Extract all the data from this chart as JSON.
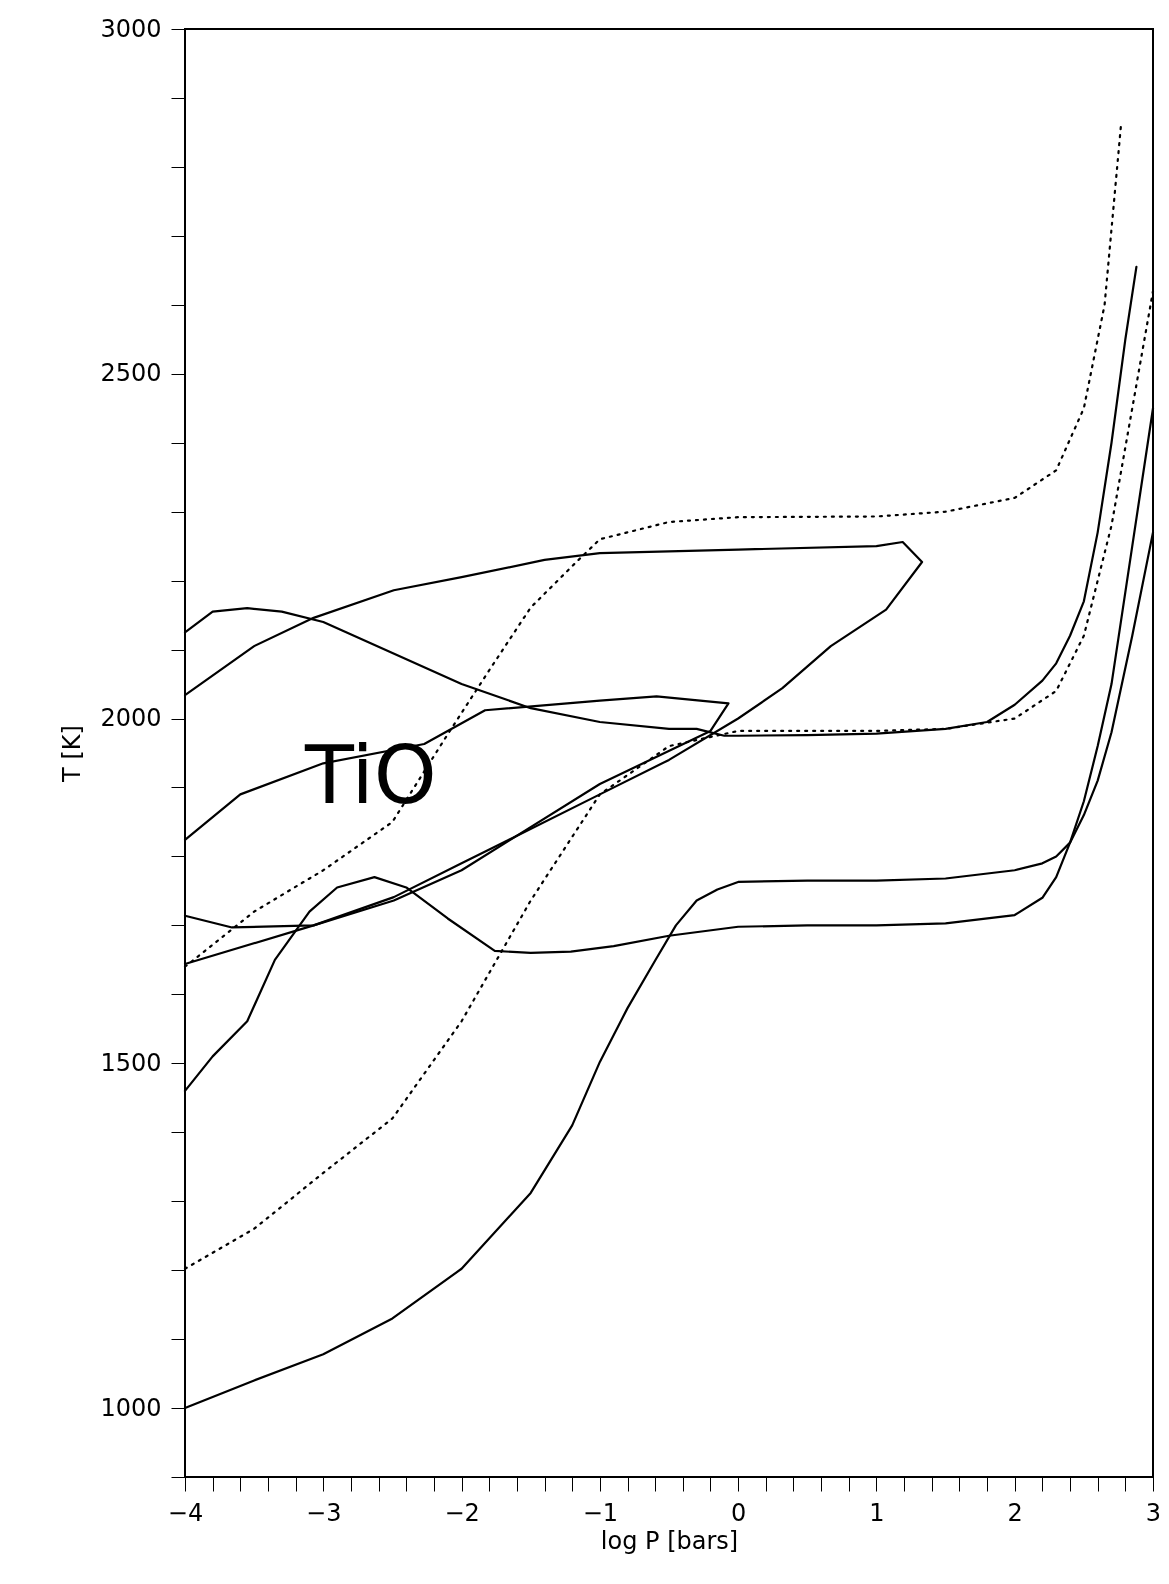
{
  "chart_data": {
    "type": "line",
    "xlabel": "log P [bars]",
    "ylabel": "T [K]",
    "xlim": [
      -4,
      3
    ],
    "ylim": [
      900,
      3000
    ],
    "grid": false,
    "marker": "none",
    "xticks": [
      -4,
      {
        "value": -3.8,
        "label": null
      },
      {
        "value": -3.6,
        "label": null
      },
      {
        "value": -3.4,
        "label": null
      },
      {
        "value": -3.2,
        "label": null
      },
      -3,
      {
        "value": -2.8,
        "label": null
      },
      {
        "value": -2.6,
        "label": null
      },
      {
        "value": -2.4,
        "label": null
      },
      {
        "value": -2.2,
        "label": null
      },
      -2,
      {
        "value": -1.8,
        "label": null
      },
      {
        "value": -1.6,
        "label": null
      },
      {
        "value": -1.4,
        "label": null
      },
      {
        "value": -1.2,
        "label": null
      },
      -1,
      {
        "value": -0.8,
        "label": null
      },
      {
        "value": -0.6,
        "label": null
      },
      {
        "value": -0.4,
        "label": null
      },
      {
        "value": -0.2,
        "label": null
      },
      0,
      {
        "value": 0.2,
        "label": null
      },
      {
        "value": 0.4,
        "label": null
      },
      {
        "value": 0.6,
        "label": null
      },
      {
        "value": 0.8,
        "label": null
      },
      1,
      {
        "value": 1.2,
        "label": null
      },
      {
        "value": 1.4,
        "label": null
      },
      {
        "value": 1.6,
        "label": null
      },
      {
        "value": 1.8,
        "label": null
      },
      2,
      {
        "value": 2.2,
        "label": null
      },
      {
        "value": 2.4,
        "label": null
      },
      {
        "value": 2.6,
        "label": null
      },
      {
        "value": 2.8,
        "label": null
      },
      3
    ],
    "yticks": [
      {
        "value": 900,
        "label": null
      },
      1000,
      {
        "value": 1100,
        "label": null
      },
      {
        "value": 1200,
        "label": null
      },
      {
        "value": 1300,
        "label": null
      },
      {
        "value": 1400,
        "label": null
      },
      1500,
      {
        "value": 1600,
        "label": null
      },
      {
        "value": 1700,
        "label": null
      },
      {
        "value": 1800,
        "label": null
      },
      {
        "value": 1900,
        "label": null
      },
      2000,
      {
        "value": 2100,
        "label": null
      },
      {
        "value": 2200,
        "label": null
      },
      {
        "value": 2300,
        "label": null
      },
      {
        "value": 2400,
        "label": null
      },
      2500,
      {
        "value": 2600,
        "label": null
      },
      {
        "value": 2700,
        "label": null
      },
      {
        "value": 2800,
        "label": null
      },
      {
        "value": 2900,
        "label": null
      },
      3000
    ],
    "annotations": [
      "TiO"
    ],
    "series": [
      {
        "color": "#000000",
        "line_style": "solid",
        "x": [
          -4,
          -3.8,
          -3.55,
          -3.3,
          -3,
          -2.5,
          -2,
          -1.5,
          -1,
          -0.5,
          -0.3,
          -0.2,
          -0.1,
          0,
          0.5,
          1,
          1.5,
          1.8,
          2,
          2.2,
          2.3,
          2.4,
          2.5,
          2.6,
          2.7,
          2.8,
          2.88
        ],
        "values": [
          2125,
          2155,
          2160,
          2155,
          2140,
          2095,
          2050,
          2015,
          1995,
          1985,
          1985,
          1980,
          1975,
          1975,
          1976,
          1978,
          1985,
          1995,
          2020,
          2055,
          2080,
          2120,
          2170,
          2270,
          2400,
          2550,
          2655
        ]
      },
      {
        "color": "#000000",
        "line_style": "solid",
        "x": [
          -4,
          -3.8,
          -3.55,
          -3.35,
          -3.1,
          -2.9,
          -2.63,
          -2.4,
          -2.1,
          -1.76,
          -1.5,
          -1.21,
          -0.9,
          -0.5,
          0,
          0.5,
          1,
          1.5,
          2,
          2.2,
          2.3,
          2.4,
          2.5,
          2.6,
          2.7,
          2.85,
          3
        ],
        "values": [
          1460,
          1510,
          1561,
          1650,
          1720,
          1755,
          1770,
          1755,
          1710,
          1663,
          1660,
          1662,
          1670,
          1685,
          1698,
          1700,
          1700,
          1703,
          1715,
          1740,
          1770,
          1820,
          1880,
          1960,
          2050,
          2250,
          2450
        ]
      },
      {
        "color": "#000000",
        "line_style": "solid",
        "x": [
          -4,
          -3.5,
          -3,
          -2.5,
          -2,
          -1.5,
          -1.2,
          -1,
          -0.8,
          -0.6,
          -0.45,
          -0.3,
          -0.15,
          0,
          0.5,
          1,
          1.5,
          2,
          2.2,
          2.3,
          2.4,
          2.5,
          2.6,
          2.7,
          2.85,
          3
        ],
        "values": [
          1000,
          1040,
          1078,
          1130,
          1202,
          1312,
          1410,
          1502,
          1580,
          1649,
          1700,
          1736,
          1752,
          1763,
          1765,
          1765,
          1768,
          1780,
          1790,
          1800,
          1820,
          1860,
          1910,
          1980,
          2120,
          2270
        ]
      },
      {
        "color": "#000000",
        "line_style": "solid",
        "x": [
          -4,
          -3.5,
          -3.07,
          -2.49,
          -2,
          -1.4,
          -1,
          0,
          1,
          1.19,
          1.33,
          1.07,
          0.67,
          0.32,
          0,
          -0.5,
          -1,
          -2,
          -2.49,
          -3.07,
          -3.66,
          -4
        ],
        "values": [
          2034,
          2105,
          2146,
          2186,
          2205,
          2230,
          2240,
          2245,
          2250,
          2256,
          2227,
          2158,
          2105,
          2044,
          2000,
          1940,
          1890,
          1790,
          1741,
          1700,
          1697,
          1714
        ]
      },
      {
        "color": "#000000",
        "line_style": "solid",
        "x": [
          -4,
          -3.6,
          -3,
          -2.27,
          -1.83,
          -1,
          -0.59,
          -0.07,
          -0.2,
          -1,
          -2,
          -2.49,
          -3.07,
          -4
        ],
        "values": [
          1824,
          1890,
          1935,
          1963,
          2012,
          2026,
          2032,
          2022,
          1982,
          1905,
          1780,
          1736,
          1700,
          1644
        ]
      },
      {
        "color": "#000000",
        "line_style": "dotted",
        "x": [
          -4,
          -3.5,
          -3,
          -2.5,
          -2.12,
          -1.8,
          -1.5,
          -1.17,
          -1,
          -0.5,
          0,
          1,
          1.5,
          2,
          2.3,
          2.5,
          2.65,
          2.77
        ],
        "values": [
          1640,
          1720,
          1780,
          1850,
          1971,
          2070,
          2161,
          2227,
          2260,
          2285,
          2292,
          2293,
          2300,
          2320,
          2360,
          2450,
          2600,
          2864
        ]
      },
      {
        "color": "#000000",
        "line_style": "dotted",
        "x": [
          -4,
          -3.5,
          -3,
          -2.5,
          -2,
          -1.5,
          -1,
          -0.5,
          0,
          1,
          1.5,
          2,
          2.3,
          2.5,
          2.7,
          2.85,
          3
        ],
        "values": [
          1202,
          1260,
          1341,
          1420,
          1561,
          1736,
          1890,
          1960,
          1982,
          1982,
          1985,
          2000,
          2040,
          2120,
          2280,
          2450,
          2620
        ]
      }
    ]
  }
}
